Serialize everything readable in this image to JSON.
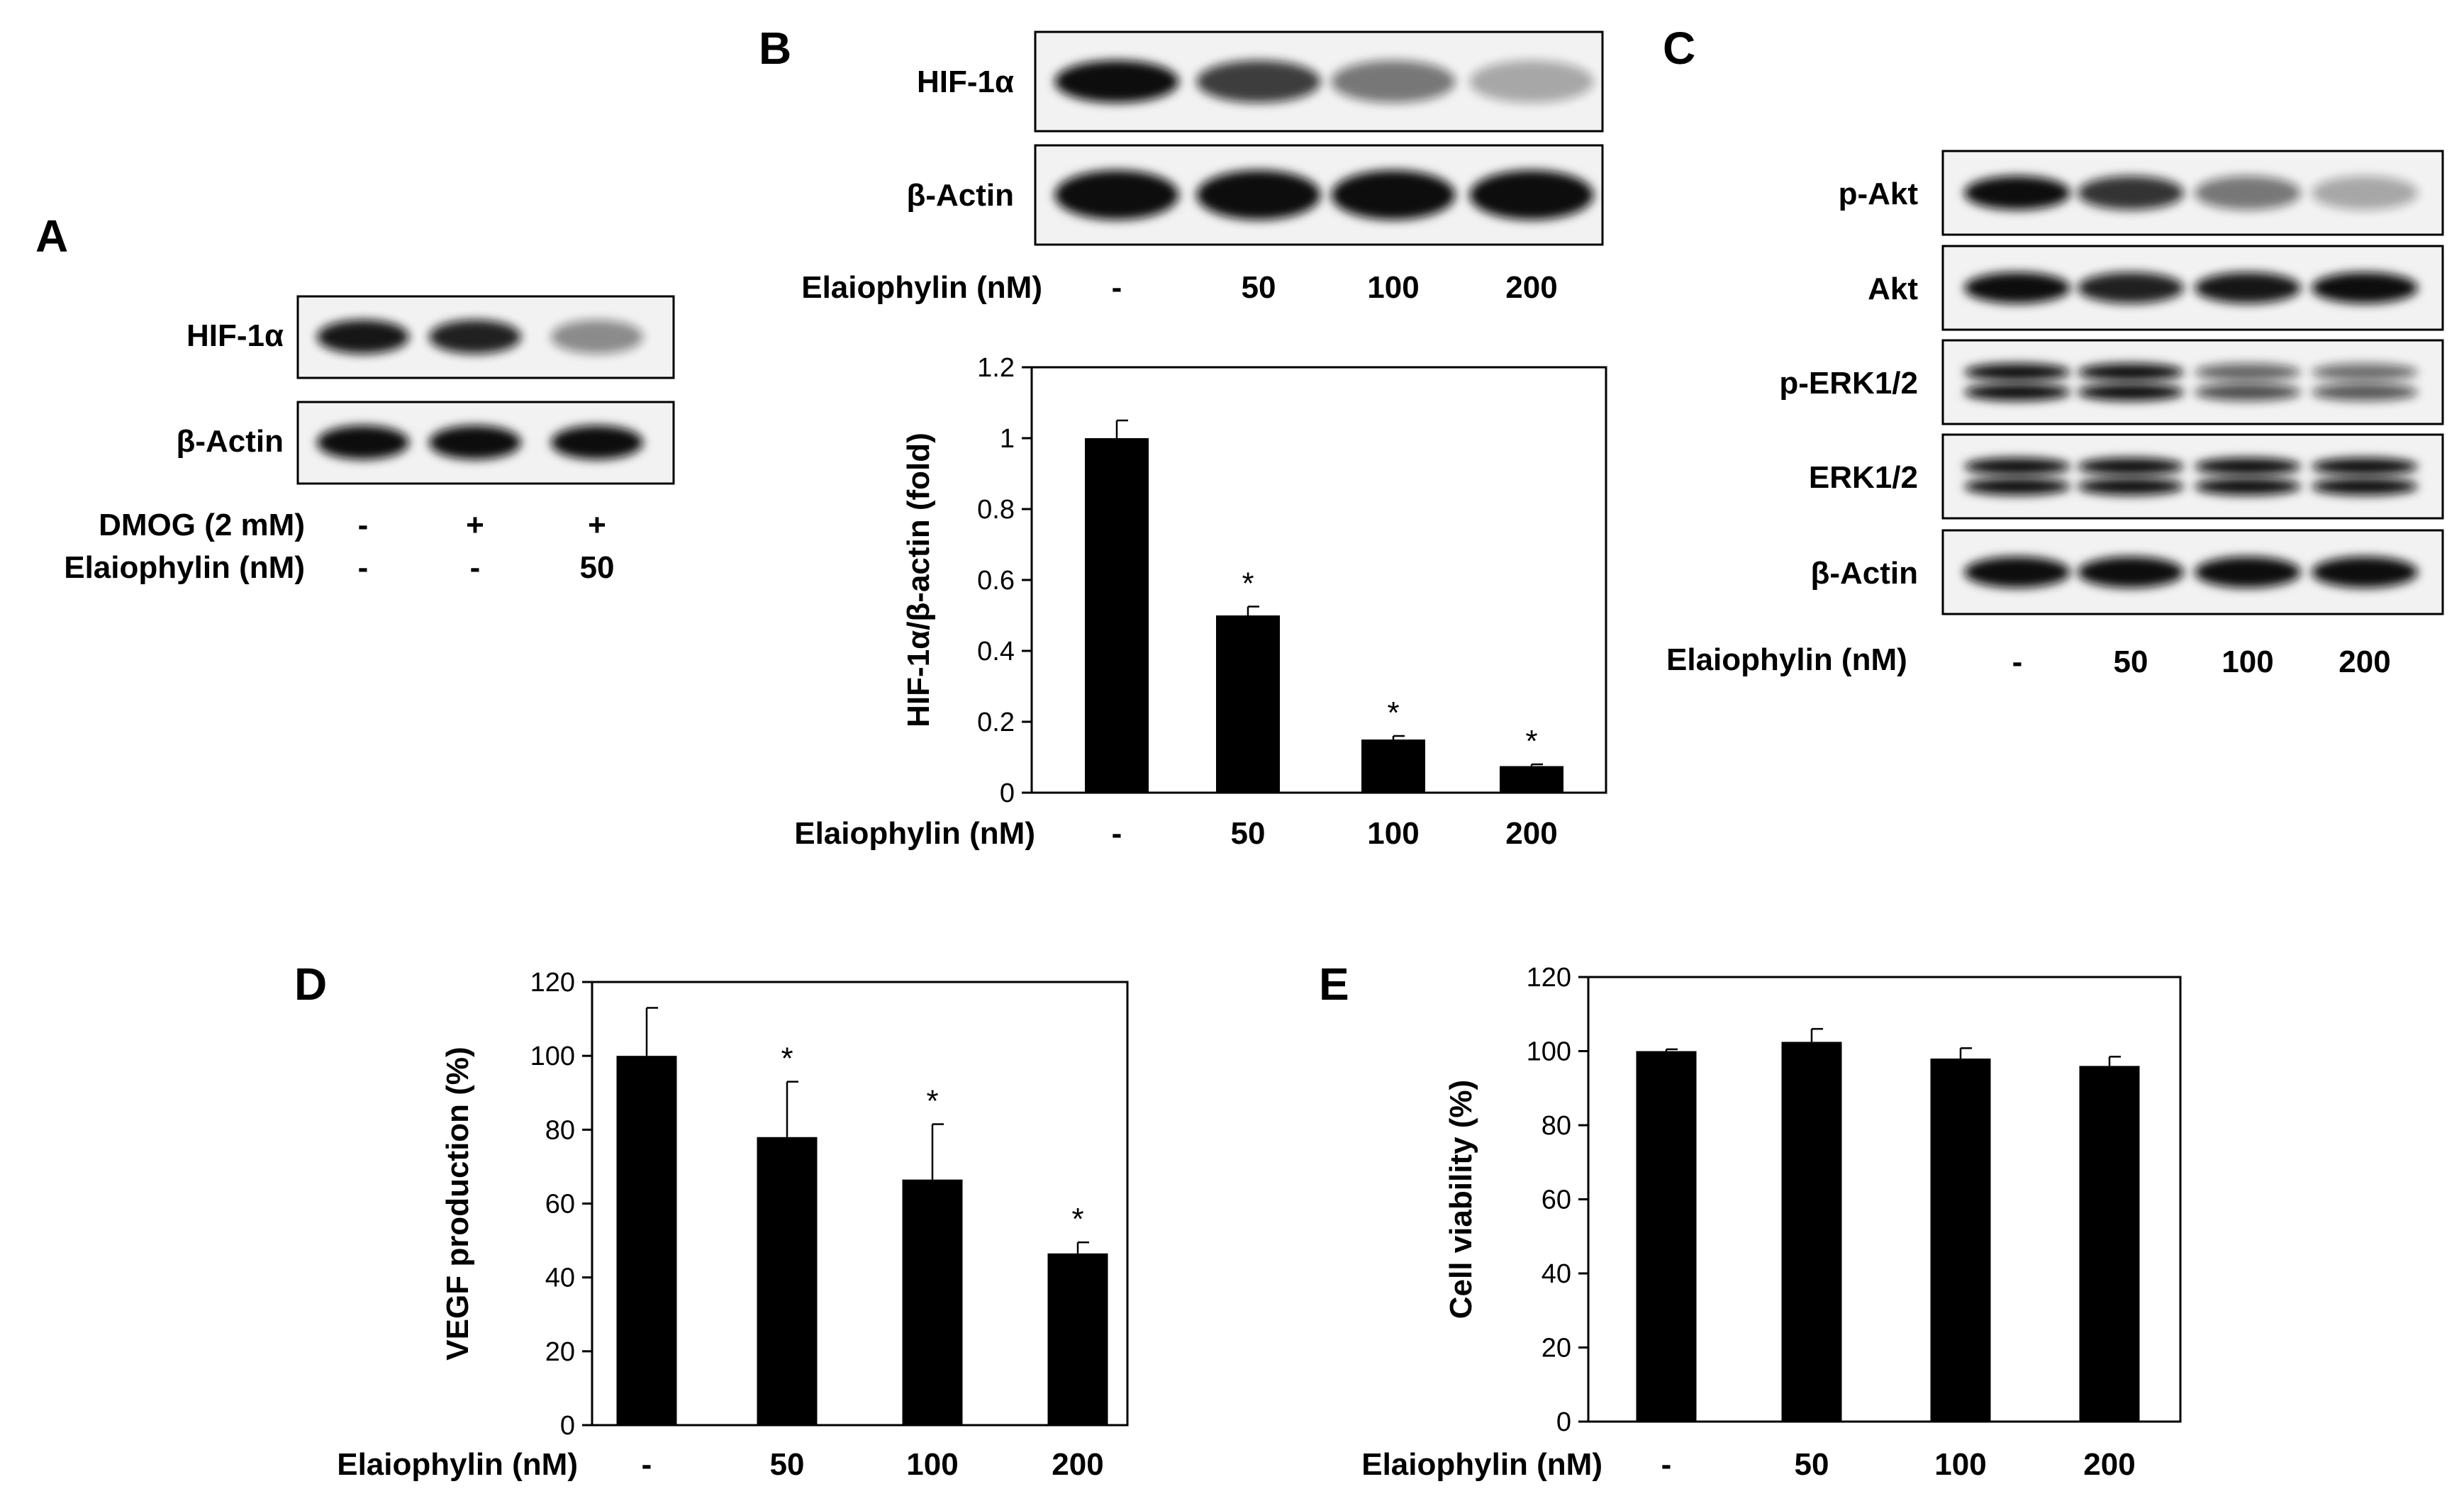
{
  "panels": {
    "A": {
      "letter": "A",
      "blot_labels": [
        "HIF-1α",
        "β-Actin"
      ],
      "treatments": [
        {
          "name": "DMOG (2 mM)",
          "values": [
            "-",
            "+",
            "+"
          ]
        },
        {
          "name": "Elaiophylin (nM)",
          "values": [
            "-",
            "-",
            "50"
          ]
        }
      ],
      "band_intensity": [
        [
          0.95,
          0.9,
          0.35
        ],
        [
          1,
          1,
          1
        ]
      ]
    },
    "B": {
      "letter": "B",
      "blot_labels": [
        "HIF-1α",
        "β-Actin"
      ],
      "treatment_label": "Elaiophylin (nM)",
      "lanes": [
        "-",
        "50",
        "100",
        "200"
      ],
      "band_intensity": [
        [
          1,
          0.75,
          0.45,
          0.2
        ],
        [
          1,
          1,
          1,
          1
        ]
      ]
    },
    "C": {
      "letter": "C",
      "blot_labels": [
        "p-Akt",
        "Akt",
        "p-ERK1/2",
        "ERK1/2",
        "β-Actin"
      ],
      "treatment_label": "Elaiophylin (nM)",
      "lanes": [
        "-",
        "50",
        "100",
        "200"
      ],
      "band_intensity": [
        [
          1,
          0.8,
          0.45,
          0.2
        ],
        [
          1,
          0.9,
          0.95,
          1
        ],
        [
          1,
          1,
          0.55,
          0.5
        ],
        [
          1,
          1,
          1,
          1
        ],
        [
          1,
          1,
          1,
          1
        ]
      ]
    },
    "D": {
      "letter": "D"
    },
    "E": {
      "letter": "E"
    }
  },
  "chart_data": [
    {
      "id": "B",
      "type": "bar",
      "categories": [
        "-",
        "50",
        "100",
        "200"
      ],
      "values": [
        1.0,
        0.5,
        0.15,
        0.075
      ],
      "errors": [
        0.05,
        0.025,
        0.01,
        0.005
      ],
      "significance": [
        "",
        "*",
        "*",
        "*"
      ],
      "xlabel": "Elaiophylin (nM)",
      "ylabel": "HIF-1α/β-actin (fold)",
      "ylim": [
        0,
        1.2
      ],
      "yticks": [
        0,
        0.2,
        0.4,
        0.6,
        0.8,
        1,
        1.2
      ],
      "color": "#000000"
    },
    {
      "id": "D",
      "type": "bar",
      "categories": [
        "-",
        "50",
        "100",
        "200"
      ],
      "values": [
        100,
        78,
        66.5,
        46.5
      ],
      "errors": [
        13,
        15,
        15,
        3
      ],
      "significance": [
        "",
        "*",
        "*",
        "*"
      ],
      "xlabel": "Elaiophylin (nM)",
      "ylabel": "VEGF production (%)",
      "ylim": [
        0,
        120
      ],
      "yticks": [
        0,
        20,
        40,
        60,
        80,
        100,
        120
      ],
      "color": "#000000"
    },
    {
      "id": "E",
      "type": "bar",
      "categories": [
        "-",
        "50",
        "100",
        "200"
      ],
      "values": [
        100,
        102.5,
        98,
        96
      ],
      "errors": [
        0.5,
        3.5,
        2.8,
        2.5
      ],
      "significance": [
        "",
        "",
        "",
        ""
      ],
      "xlabel": "Elaiophylin (nM)",
      "ylabel": "Cell viability (%)",
      "ylim": [
        0,
        120
      ],
      "yticks": [
        0,
        20,
        40,
        60,
        80,
        100,
        120
      ],
      "color": "#000000"
    }
  ]
}
